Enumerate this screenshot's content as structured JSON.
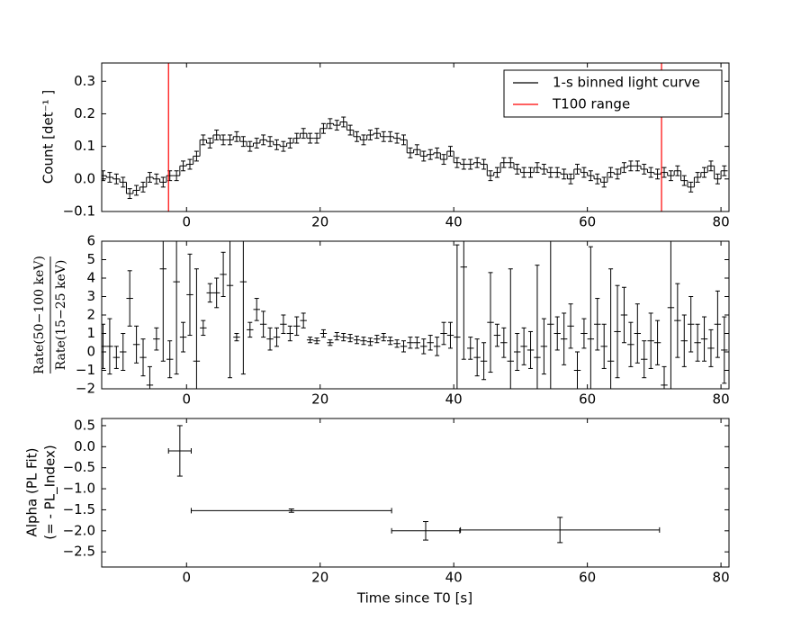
{
  "chart_data": [
    {
      "type": "step",
      "ylabel": "Count [det⁻¹ ]",
      "xlim": [
        -12.7,
        81.2
      ],
      "xticks": [
        0,
        20,
        40,
        60,
        80
      ],
      "ylim": [
        -0.1,
        0.356
      ],
      "yticks": [
        {
          "value": -0.1,
          "label": "−0.1"
        },
        {
          "value": 0,
          "label": "0.0"
        },
        {
          "value": 0.1,
          "label": "0.1"
        },
        {
          "value": 0.2,
          "label": "0.2"
        },
        {
          "value": 0.3,
          "label": "0.3"
        }
      ],
      "legend": "upper right",
      "x": [
        -12.5,
        -11.5,
        -10.5,
        -9.5,
        -8.5,
        -7.5,
        -6.5,
        -5.5,
        -4.5,
        -3.5,
        -2.5,
        -1.5,
        -0.5,
        0.5,
        1.5,
        2.5,
        3.5,
        4.5,
        5.5,
        6.5,
        7.5,
        8.5,
        9.5,
        10.5,
        11.5,
        12.5,
        13.5,
        14.5,
        15.5,
        16.5,
        17.5,
        18.5,
        19.5,
        20.5,
        21.5,
        22.5,
        23.5,
        24.5,
        25.5,
        26.5,
        27.5,
        28.5,
        29.5,
        30.5,
        31.5,
        32.5,
        33.5,
        34.5,
        35.5,
        36.5,
        37.5,
        38.5,
        39.5,
        40.5,
        41.5,
        42.5,
        43.5,
        44.5,
        45.5,
        46.5,
        47.5,
        48.5,
        49.5,
        50.5,
        51.5,
        52.5,
        53.5,
        54.5,
        55.5,
        56.5,
        57.5,
        58.5,
        59.5,
        60.5,
        61.5,
        62.5,
        63.5,
        64.5,
        65.5,
        66.5,
        67.5,
        68.5,
        69.5,
        70.5,
        71.5,
        72.5,
        73.5,
        74.5,
        75.5,
        76.5,
        77.5,
        78.5,
        79.5,
        80.5
      ],
      "xerr": 0.5,
      "series": [
        {
          "name": "1-s binned light curve",
          "color": "#000000",
          "error": 0.015,
          "values": [
            0.01,
            0.005,
            0,
            -0.01,
            -0.045,
            -0.035,
            -0.025,
            0.005,
            0,
            -0.01,
            0.01,
            0.01,
            0.04,
            0.045,
            0.07,
            0.12,
            0.11,
            0.135,
            0.12,
            0.12,
            0.13,
            0.115,
            0.1,
            0.11,
            0.12,
            0.115,
            0.105,
            0.1,
            0.11,
            0.125,
            0.14,
            0.125,
            0.125,
            0.155,
            0.17,
            0.165,
            0.175,
            0.15,
            0.13,
            0.12,
            0.135,
            0.14,
            0.13,
            0.13,
            0.125,
            0.12,
            0.08,
            0.09,
            0.07,
            0.075,
            0.08,
            0.06,
            0.085,
            0.05,
            0.045,
            0.045,
            0.05,
            0.045,
            0.01,
            0.02,
            0.05,
            0.05,
            0.03,
            0.02,
            0.02,
            0.035,
            0.03,
            0.02,
            0.02,
            0.015,
            0,
            0.03,
            0.02,
            0.01,
            0,
            -0.01,
            0.02,
            0.015,
            0.035,
            0.04,
            0.04,
            0.03,
            0.02,
            0.015,
            0.02,
            0.01,
            0.025,
            -0.005,
            -0.025,
            0.005,
            0.02,
            0.04,
            0,
            0.025
          ]
        },
        {
          "name": "T100 range",
          "color": "#ff0000",
          "x": [
            -2.7,
            71.1
          ]
        }
      ]
    },
    {
      "type": "scatter",
      "ylabel_num": "Rate(50−100 keV)",
      "ylabel_den": "Rate(15−25 keV)",
      "xlim": [
        -12.7,
        81.2
      ],
      "xticks": [
        0,
        20,
        40,
        60,
        80
      ],
      "ylim": [
        -2,
        6
      ],
      "yticks": [
        {
          "value": -2,
          "label": "−2"
        },
        {
          "value": -1,
          "label": "−1"
        },
        0,
        1,
        2,
        3,
        4,
        5,
        6
      ],
      "x": [
        -12.5,
        -11.5,
        -10.5,
        -9.5,
        -8.5,
        -7.5,
        -6.5,
        -5.5,
        -4.5,
        -3.5,
        -2.5,
        -1.5,
        -0.5,
        0.5,
        1.5,
        2.5,
        3.5,
        4.5,
        5.5,
        6.5,
        7.5,
        8.5,
        9.5,
        10.5,
        11.5,
        12.5,
        13.5,
        14.5,
        15.5,
        16.5,
        17.5,
        18.5,
        19.5,
        20.5,
        21.5,
        22.5,
        23.5,
        24.5,
        25.5,
        26.5,
        27.5,
        28.5,
        29.5,
        30.5,
        31.5,
        32.5,
        33.5,
        34.5,
        35.5,
        36.5,
        37.5,
        38.5,
        39.5,
        40.5,
        41.5,
        42.5,
        43.5,
        44.5,
        45.5,
        46.5,
        47.5,
        48.5,
        49.5,
        50.5,
        51.5,
        52.5,
        53.5,
        54.5,
        55.5,
        56.5,
        57.5,
        58.5,
        59.5,
        60.5,
        61.5,
        62.5,
        63.5,
        64.5,
        65.5,
        66.5,
        67.5,
        68.5,
        69.5,
        70.5,
        71.5,
        72.5,
        73.5,
        74.5,
        75.5,
        76.5,
        77.5,
        78.5,
        79.5,
        80.5
      ],
      "xerr": 0.5,
      "color": "#000000",
      "values": [
        0.3,
        0.3,
        -0.3,
        0.0,
        2.9,
        0.4,
        -0.3,
        -1.8,
        0.7,
        4.5,
        -0.4,
        3.8,
        0.8,
        3.1,
        -0.5,
        1.3,
        3.2,
        3.2,
        4.2,
        3.6,
        0.8,
        3.8,
        1.2,
        2.3,
        1.5,
        0.7,
        0.8,
        1.5,
        1.0,
        1.4,
        1.7,
        0.65,
        0.6,
        1.0,
        0.5,
        0.85,
        0.8,
        0.75,
        0.65,
        0.6,
        0.55,
        0.7,
        0.8,
        0.6,
        0.45,
        0.3,
        0.5,
        0.5,
        0.3,
        0.5,
        0.3,
        1.0,
        0.9,
        0.8,
        4.6,
        0.2,
        -0.3,
        -0.5,
        1.6,
        0.9,
        0.5,
        -0.5,
        0.0,
        0.3,
        0.1,
        -0.3,
        0.3,
        1.5,
        1.0,
        0.7,
        1.4,
        -1.0,
        1.0,
        0.7,
        1.5,
        0.3,
        -0.5,
        1.1,
        2.0,
        0.4,
        1.0,
        -0.4,
        0.6,
        0.5,
        -1.8,
        2.4,
        1.7,
        0.6,
        1.5,
        0.5,
        0.7,
        0.2,
        1.5,
        0.1
      ],
      "errors": [
        1.2,
        1.5,
        0.6,
        1.0,
        1.5,
        1.0,
        1.0,
        1.0,
        0.6,
        5,
        1.0,
        5,
        0.8,
        2.2,
        5,
        0.4,
        0.5,
        0.8,
        1.2,
        5,
        0.2,
        5,
        0.4,
        0.6,
        0.7,
        0.6,
        0.5,
        0.5,
        0.4,
        0.5,
        0.4,
        0.15,
        0.15,
        0.2,
        0.15,
        0.2,
        0.2,
        0.2,
        0.2,
        0.2,
        0.2,
        0.2,
        0.2,
        0.2,
        0.2,
        0.3,
        0.3,
        0.3,
        0.4,
        0.4,
        0.5,
        0.6,
        0.7,
        5,
        5,
        0.6,
        1.0,
        1.0,
        2.7,
        0.6,
        0.8,
        5,
        1.0,
        1.0,
        1.0,
        5,
        1.5,
        5,
        0.9,
        1.4,
        1.2,
        1.0,
        0.8,
        5,
        1.4,
        1.2,
        5,
        2.5,
        1.5,
        1.2,
        1.6,
        1.0,
        1.5,
        1.2,
        1.0,
        5,
        2.0,
        1.4,
        1.5,
        1.0,
        1.2,
        1.0,
        1.8,
        1.8
      ]
    },
    {
      "type": "errorbar",
      "ylabel": [
        "Alpha (PL Fit)",
        "(= - PL_Index)"
      ],
      "xlabel": "Time since T0 [s]",
      "xlim": [
        -12.7,
        81.2
      ],
      "xticks": [
        0,
        20,
        40,
        60,
        80
      ],
      "ylim": [
        -2.86,
        0.67
      ],
      "yticks": [
        {
          "value": -2.5,
          "label": "−2.5"
        },
        {
          "value": -2,
          "label": "−2.0"
        },
        {
          "value": -1.5,
          "label": "−1.5"
        },
        {
          "value": -1,
          "label": "−1.0"
        },
        {
          "value": -0.5,
          "label": "−0.5"
        },
        {
          "value": 0,
          "label": "0.0"
        },
        0.5
      ],
      "color": "#000000",
      "x": [
        -1,
        15.7,
        35.8,
        55.9
      ],
      "xerr": [
        1.7,
        15,
        5.1,
        14.9
      ],
      "values": [
        -0.1,
        -1.52,
        -2.0,
        -1.98
      ],
      "errors": [
        0.6,
        0.04,
        0.22,
        0.3
      ]
    }
  ]
}
